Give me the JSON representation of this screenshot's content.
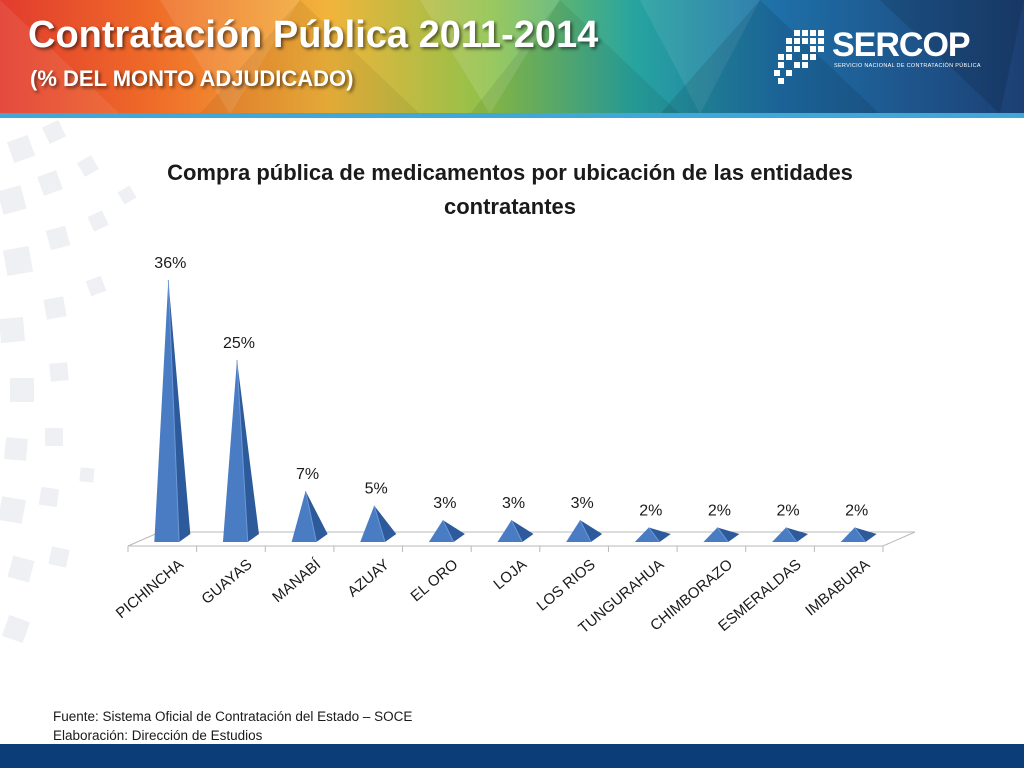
{
  "header": {
    "title": "Contratación Pública 2011-2014",
    "subtitle": "(% DEL MONTO ADJUDICADO)",
    "logo": {
      "name": "SERCOP",
      "tagline": "SERVICIO NACIONAL DE CONTRATACIÓN PÚBLICA"
    }
  },
  "chart_data": {
    "type": "bar",
    "title": "Compra pública de medicamentos por ubicación de las entidades contratantes",
    "categories": [
      "PICHINCHA",
      "GUAYAS",
      "MANABÍ",
      "AZUAY",
      "EL ORO",
      "LOJA",
      "LOS RIOS",
      "TUNGURAHUA",
      "CHIMBORAZO",
      "ESMERALDAS",
      "IMBABURA"
    ],
    "values": [
      36,
      25,
      7,
      5,
      3,
      3,
      3,
      2,
      2,
      2,
      2
    ],
    "value_labels": [
      "36%",
      "25%",
      "7%",
      "5%",
      "3%",
      "3%",
      "3%",
      "2%",
      "2%",
      "2%",
      "2%"
    ],
    "unit": "%",
    "bar_shape": "3d-pyramid",
    "color": "#4a7cc4",
    "grid": false,
    "legend": "none"
  },
  "footer": {
    "source": "Fuente: Sistema Oficial de Contratación del Estado – SOCE",
    "prepared_by": "Elaboración: Dirección de Estudios"
  }
}
